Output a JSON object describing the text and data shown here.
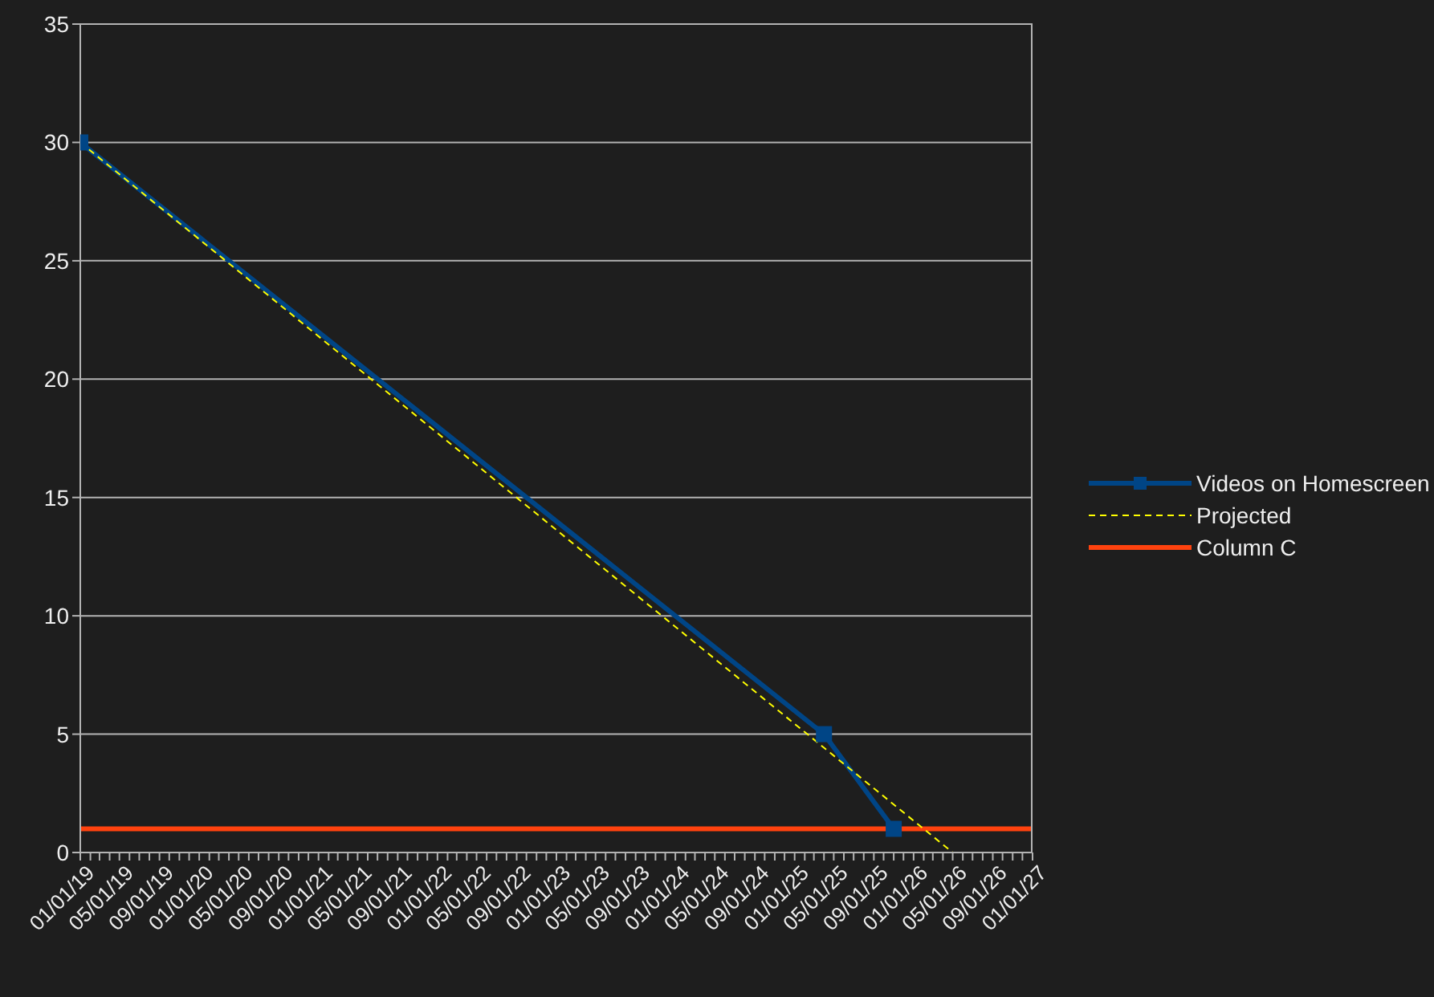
{
  "chart_data": {
    "type": "line",
    "xlim": [
      "2019-01-01",
      "2027-01-01"
    ],
    "xticks": [
      {
        "value": "2019-01-01",
        "label": "01/01/19"
      },
      {
        "value": "2019-02-01",
        "label": null
      },
      {
        "value": "2019-03-01",
        "label": null
      },
      {
        "value": "2019-04-01",
        "label": null
      },
      {
        "value": "2019-05-01",
        "label": "05/01/19"
      },
      {
        "value": "2019-06-01",
        "label": null
      },
      {
        "value": "2019-07-01",
        "label": null
      },
      {
        "value": "2019-08-01",
        "label": null
      },
      {
        "value": "2019-09-01",
        "label": "09/01/19"
      },
      {
        "value": "2019-10-01",
        "label": null
      },
      {
        "value": "2019-11-01",
        "label": null
      },
      {
        "value": "2019-12-01",
        "label": null
      },
      {
        "value": "2020-01-01",
        "label": "01/01/20"
      },
      {
        "value": "2020-02-01",
        "label": null
      },
      {
        "value": "2020-03-01",
        "label": null
      },
      {
        "value": "2020-04-01",
        "label": null
      },
      {
        "value": "2020-05-01",
        "label": "05/01/20"
      },
      {
        "value": "2020-06-01",
        "label": null
      },
      {
        "value": "2020-07-01",
        "label": null
      },
      {
        "value": "2020-08-01",
        "label": null
      },
      {
        "value": "2020-09-01",
        "label": "09/01/20"
      },
      {
        "value": "2020-10-01",
        "label": null
      },
      {
        "value": "2020-11-01",
        "label": null
      },
      {
        "value": "2020-12-01",
        "label": null
      },
      {
        "value": "2021-01-01",
        "label": "01/01/21"
      },
      {
        "value": "2021-02-01",
        "label": null
      },
      {
        "value": "2021-03-01",
        "label": null
      },
      {
        "value": "2021-04-01",
        "label": null
      },
      {
        "value": "2021-05-01",
        "label": "05/01/21"
      },
      {
        "value": "2021-06-01",
        "label": null
      },
      {
        "value": "2021-07-01",
        "label": null
      },
      {
        "value": "2021-08-01",
        "label": null
      },
      {
        "value": "2021-09-01",
        "label": "09/01/21"
      },
      {
        "value": "2021-10-01",
        "label": null
      },
      {
        "value": "2021-11-01",
        "label": null
      },
      {
        "value": "2021-12-01",
        "label": null
      },
      {
        "value": "2022-01-01",
        "label": "01/01/22"
      },
      {
        "value": "2022-02-01",
        "label": null
      },
      {
        "value": "2022-03-01",
        "label": null
      },
      {
        "value": "2022-04-01",
        "label": null
      },
      {
        "value": "2022-05-01",
        "label": "05/01/22"
      },
      {
        "value": "2022-06-01",
        "label": null
      },
      {
        "value": "2022-07-01",
        "label": null
      },
      {
        "value": "2022-08-01",
        "label": null
      },
      {
        "value": "2022-09-01",
        "label": "09/01/22"
      },
      {
        "value": "2022-10-01",
        "label": null
      },
      {
        "value": "2022-11-01",
        "label": null
      },
      {
        "value": "2022-12-01",
        "label": null
      },
      {
        "value": "2023-01-01",
        "label": "01/01/23"
      },
      {
        "value": "2023-02-01",
        "label": null
      },
      {
        "value": "2023-03-01",
        "label": null
      },
      {
        "value": "2023-04-01",
        "label": null
      },
      {
        "value": "2023-05-01",
        "label": "05/01/23"
      },
      {
        "value": "2023-06-01",
        "label": null
      },
      {
        "value": "2023-07-01",
        "label": null
      },
      {
        "value": "2023-08-01",
        "label": null
      },
      {
        "value": "2023-09-01",
        "label": "09/01/23"
      },
      {
        "value": "2023-10-01",
        "label": null
      },
      {
        "value": "2023-11-01",
        "label": null
      },
      {
        "value": "2023-12-01",
        "label": null
      },
      {
        "value": "2024-01-01",
        "label": "01/01/24"
      },
      {
        "value": "2024-02-01",
        "label": null
      },
      {
        "value": "2024-03-01",
        "label": null
      },
      {
        "value": "2024-04-01",
        "label": null
      },
      {
        "value": "2024-05-01",
        "label": "05/01/24"
      },
      {
        "value": "2024-06-01",
        "label": null
      },
      {
        "value": "2024-07-01",
        "label": null
      },
      {
        "value": "2024-08-01",
        "label": null
      },
      {
        "value": "2024-09-01",
        "label": "09/01/24"
      },
      {
        "value": "2024-10-01",
        "label": null
      },
      {
        "value": "2024-11-01",
        "label": null
      },
      {
        "value": "2024-12-01",
        "label": null
      },
      {
        "value": "2025-01-01",
        "label": "01/01/25"
      },
      {
        "value": "2025-02-01",
        "label": null
      },
      {
        "value": "2025-03-01",
        "label": null
      },
      {
        "value": "2025-04-01",
        "label": null
      },
      {
        "value": "2025-05-01",
        "label": "05/01/25"
      },
      {
        "value": "2025-06-01",
        "label": null
      },
      {
        "value": "2025-07-01",
        "label": null
      },
      {
        "value": "2025-08-01",
        "label": null
      },
      {
        "value": "2025-09-01",
        "label": "09/01/25"
      },
      {
        "value": "2025-10-01",
        "label": null
      },
      {
        "value": "2025-11-01",
        "label": null
      },
      {
        "value": "2025-12-01",
        "label": null
      },
      {
        "value": "2026-01-01",
        "label": "01/01/26"
      },
      {
        "value": "2026-02-01",
        "label": null
      },
      {
        "value": "2026-03-01",
        "label": null
      },
      {
        "value": "2026-04-01",
        "label": null
      },
      {
        "value": "2026-05-01",
        "label": "05/01/26"
      },
      {
        "value": "2026-06-01",
        "label": null
      },
      {
        "value": "2026-07-01",
        "label": null
      },
      {
        "value": "2026-08-01",
        "label": null
      },
      {
        "value": "2026-09-01",
        "label": "09/01/26"
      },
      {
        "value": "2026-10-01",
        "label": null
      },
      {
        "value": "2026-11-01",
        "label": null
      },
      {
        "value": "2026-12-01",
        "label": null
      },
      {
        "value": "2027-01-01",
        "label": "01/01/27"
      }
    ],
    "ylim": [
      0,
      35
    ],
    "yticks": [
      0,
      5,
      10,
      15,
      20,
      25,
      30,
      35
    ],
    "grid": "y",
    "legend": "right",
    "series": [
      {
        "name": "Videos on Homescreen",
        "color": "#004586",
        "x": [
          "2019-01-01",
          "2025-04-01",
          "2025-11-01"
        ],
        "values": [
          30,
          5,
          1
        ],
        "marker": "square",
        "line_style": "solid"
      },
      {
        "name": "Projected",
        "color": "#ffff00",
        "x": [
          "2019-01-01",
          "2026-05-01"
        ],
        "values": [
          30,
          0
        ],
        "marker": "none",
        "line_style": "dashed"
      },
      {
        "name": "Column C",
        "color": "#ff420e",
        "x": [
          "2019-01-01",
          "2027-01-01"
        ],
        "values": [
          1,
          1
        ],
        "marker": "none",
        "line_style": "solid"
      }
    ]
  }
}
